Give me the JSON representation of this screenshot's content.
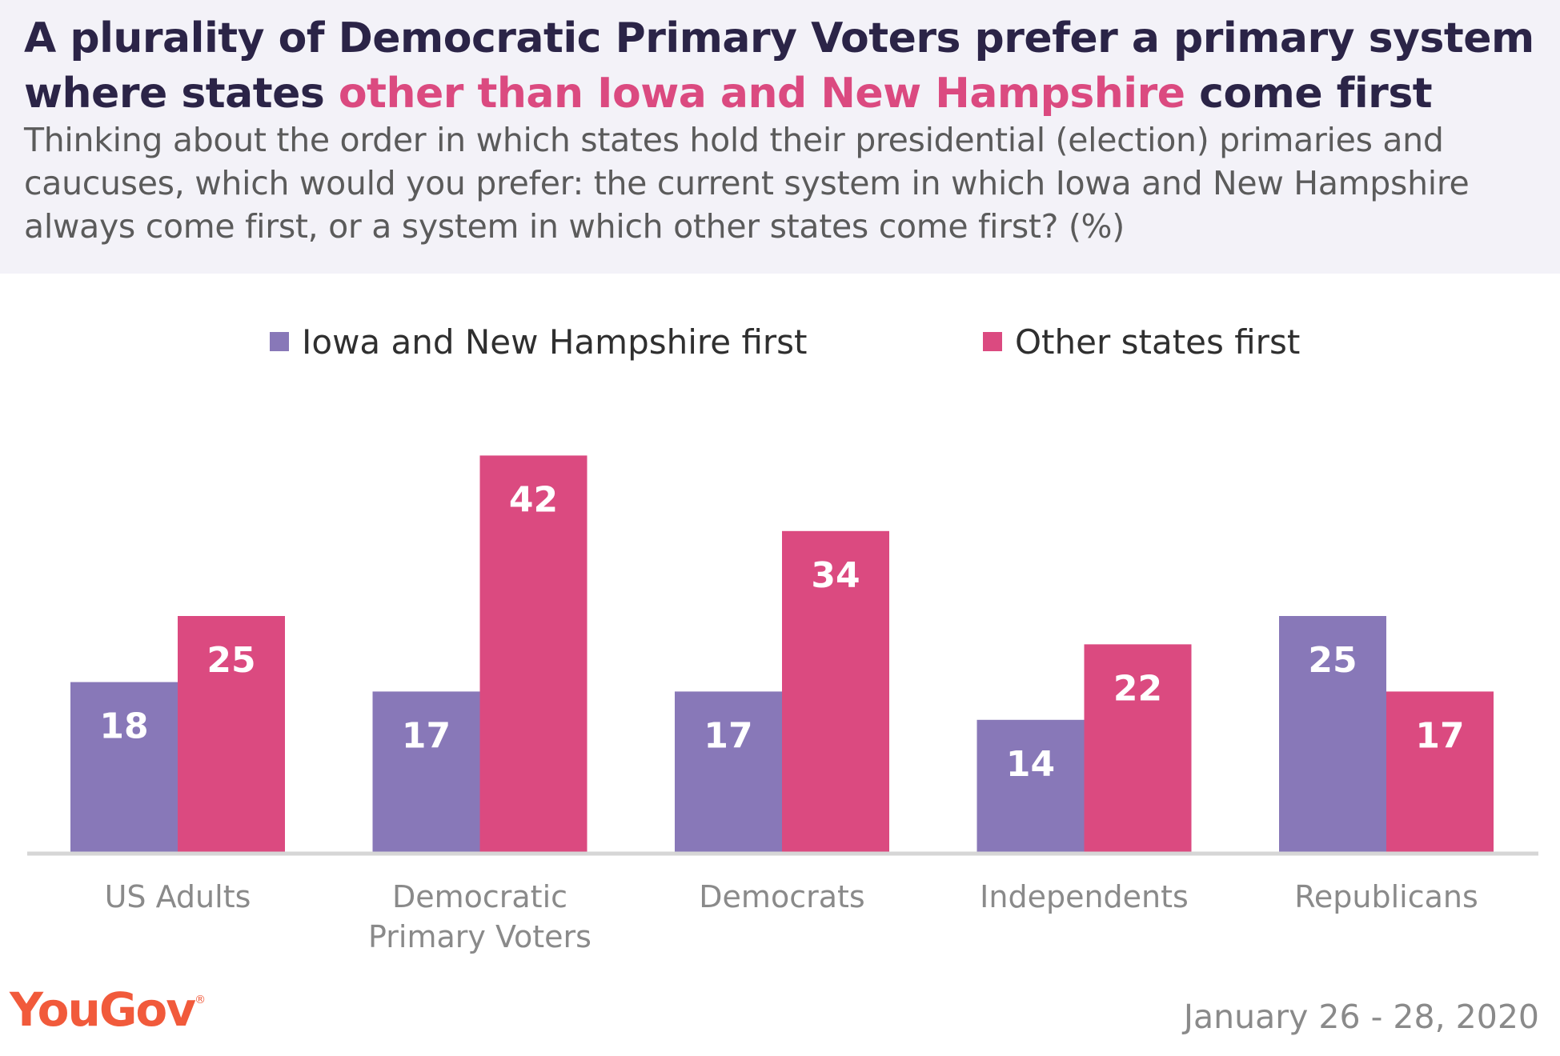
{
  "header": {
    "title_part1": "A plurality of Democratic Primary Voters prefer a primary system where states ",
    "title_highlight": "other than Iowa and New Hampshire",
    "title_part2": " come first",
    "subtitle": "Thinking about the order in which states hold their presidential (election) primaries and caucuses, which would you prefer: the current system in which Iowa and New Hampshire always come first, or a system in which other states come first? (%)"
  },
  "colors": {
    "series_iowa": "#8878b8",
    "series_other": "#db4a80",
    "highlight": "#db4a80",
    "axis": "#d6d6d6",
    "category_label": "#8a8a8a"
  },
  "chart_data": {
    "type": "bar",
    "categories": [
      "US Adults",
      "Democratic Primary Voters",
      "Democrats",
      "Independents",
      "Republicans"
    ],
    "category_lines": [
      [
        "US Adults"
      ],
      [
        "Democratic",
        "Primary Voters"
      ],
      [
        "Democrats"
      ],
      [
        "Independents"
      ],
      [
        "Republicans"
      ]
    ],
    "series": [
      {
        "name": "Iowa and New Hampshire first",
        "values": [
          18,
          17,
          17,
          14,
          25
        ]
      },
      {
        "name": "Other states first",
        "values": [
          25,
          42,
          34,
          22,
          17
        ]
      }
    ],
    "legend_position": "top-center",
    "grid": false,
    "ylim": [
      0,
      50
    ]
  },
  "footer": {
    "logo": "YouGov",
    "logo_mark": "®",
    "date": "January 26 - 28, 2020"
  }
}
